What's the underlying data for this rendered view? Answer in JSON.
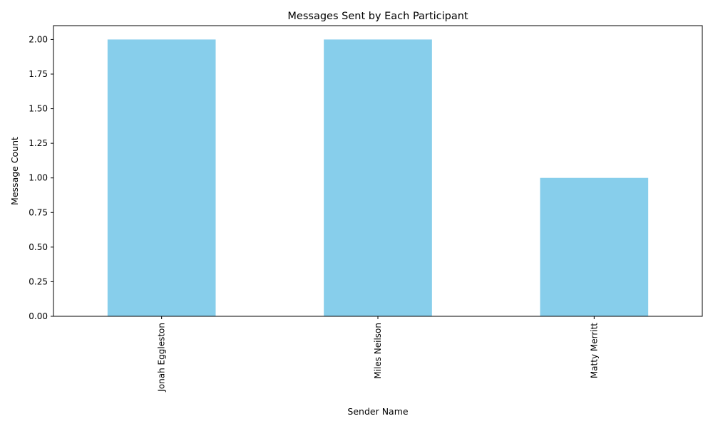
{
  "chart_data": {
    "type": "bar",
    "title": "Messages Sent by Each Participant",
    "xlabel": "Sender Name",
    "ylabel": "Message Count",
    "categories": [
      "Jonah Eggleston",
      "Miles Neilson",
      "Matty Merritt"
    ],
    "values": [
      2,
      2,
      1
    ],
    "ylim": [
      0,
      2.1
    ],
    "yticks": [
      "0.00",
      "0.25",
      "0.50",
      "0.75",
      "1.00",
      "1.25",
      "1.50",
      "1.75",
      "2.00"
    ],
    "bar_color": "#87ceeb",
    "grid": false,
    "legend": "none"
  }
}
